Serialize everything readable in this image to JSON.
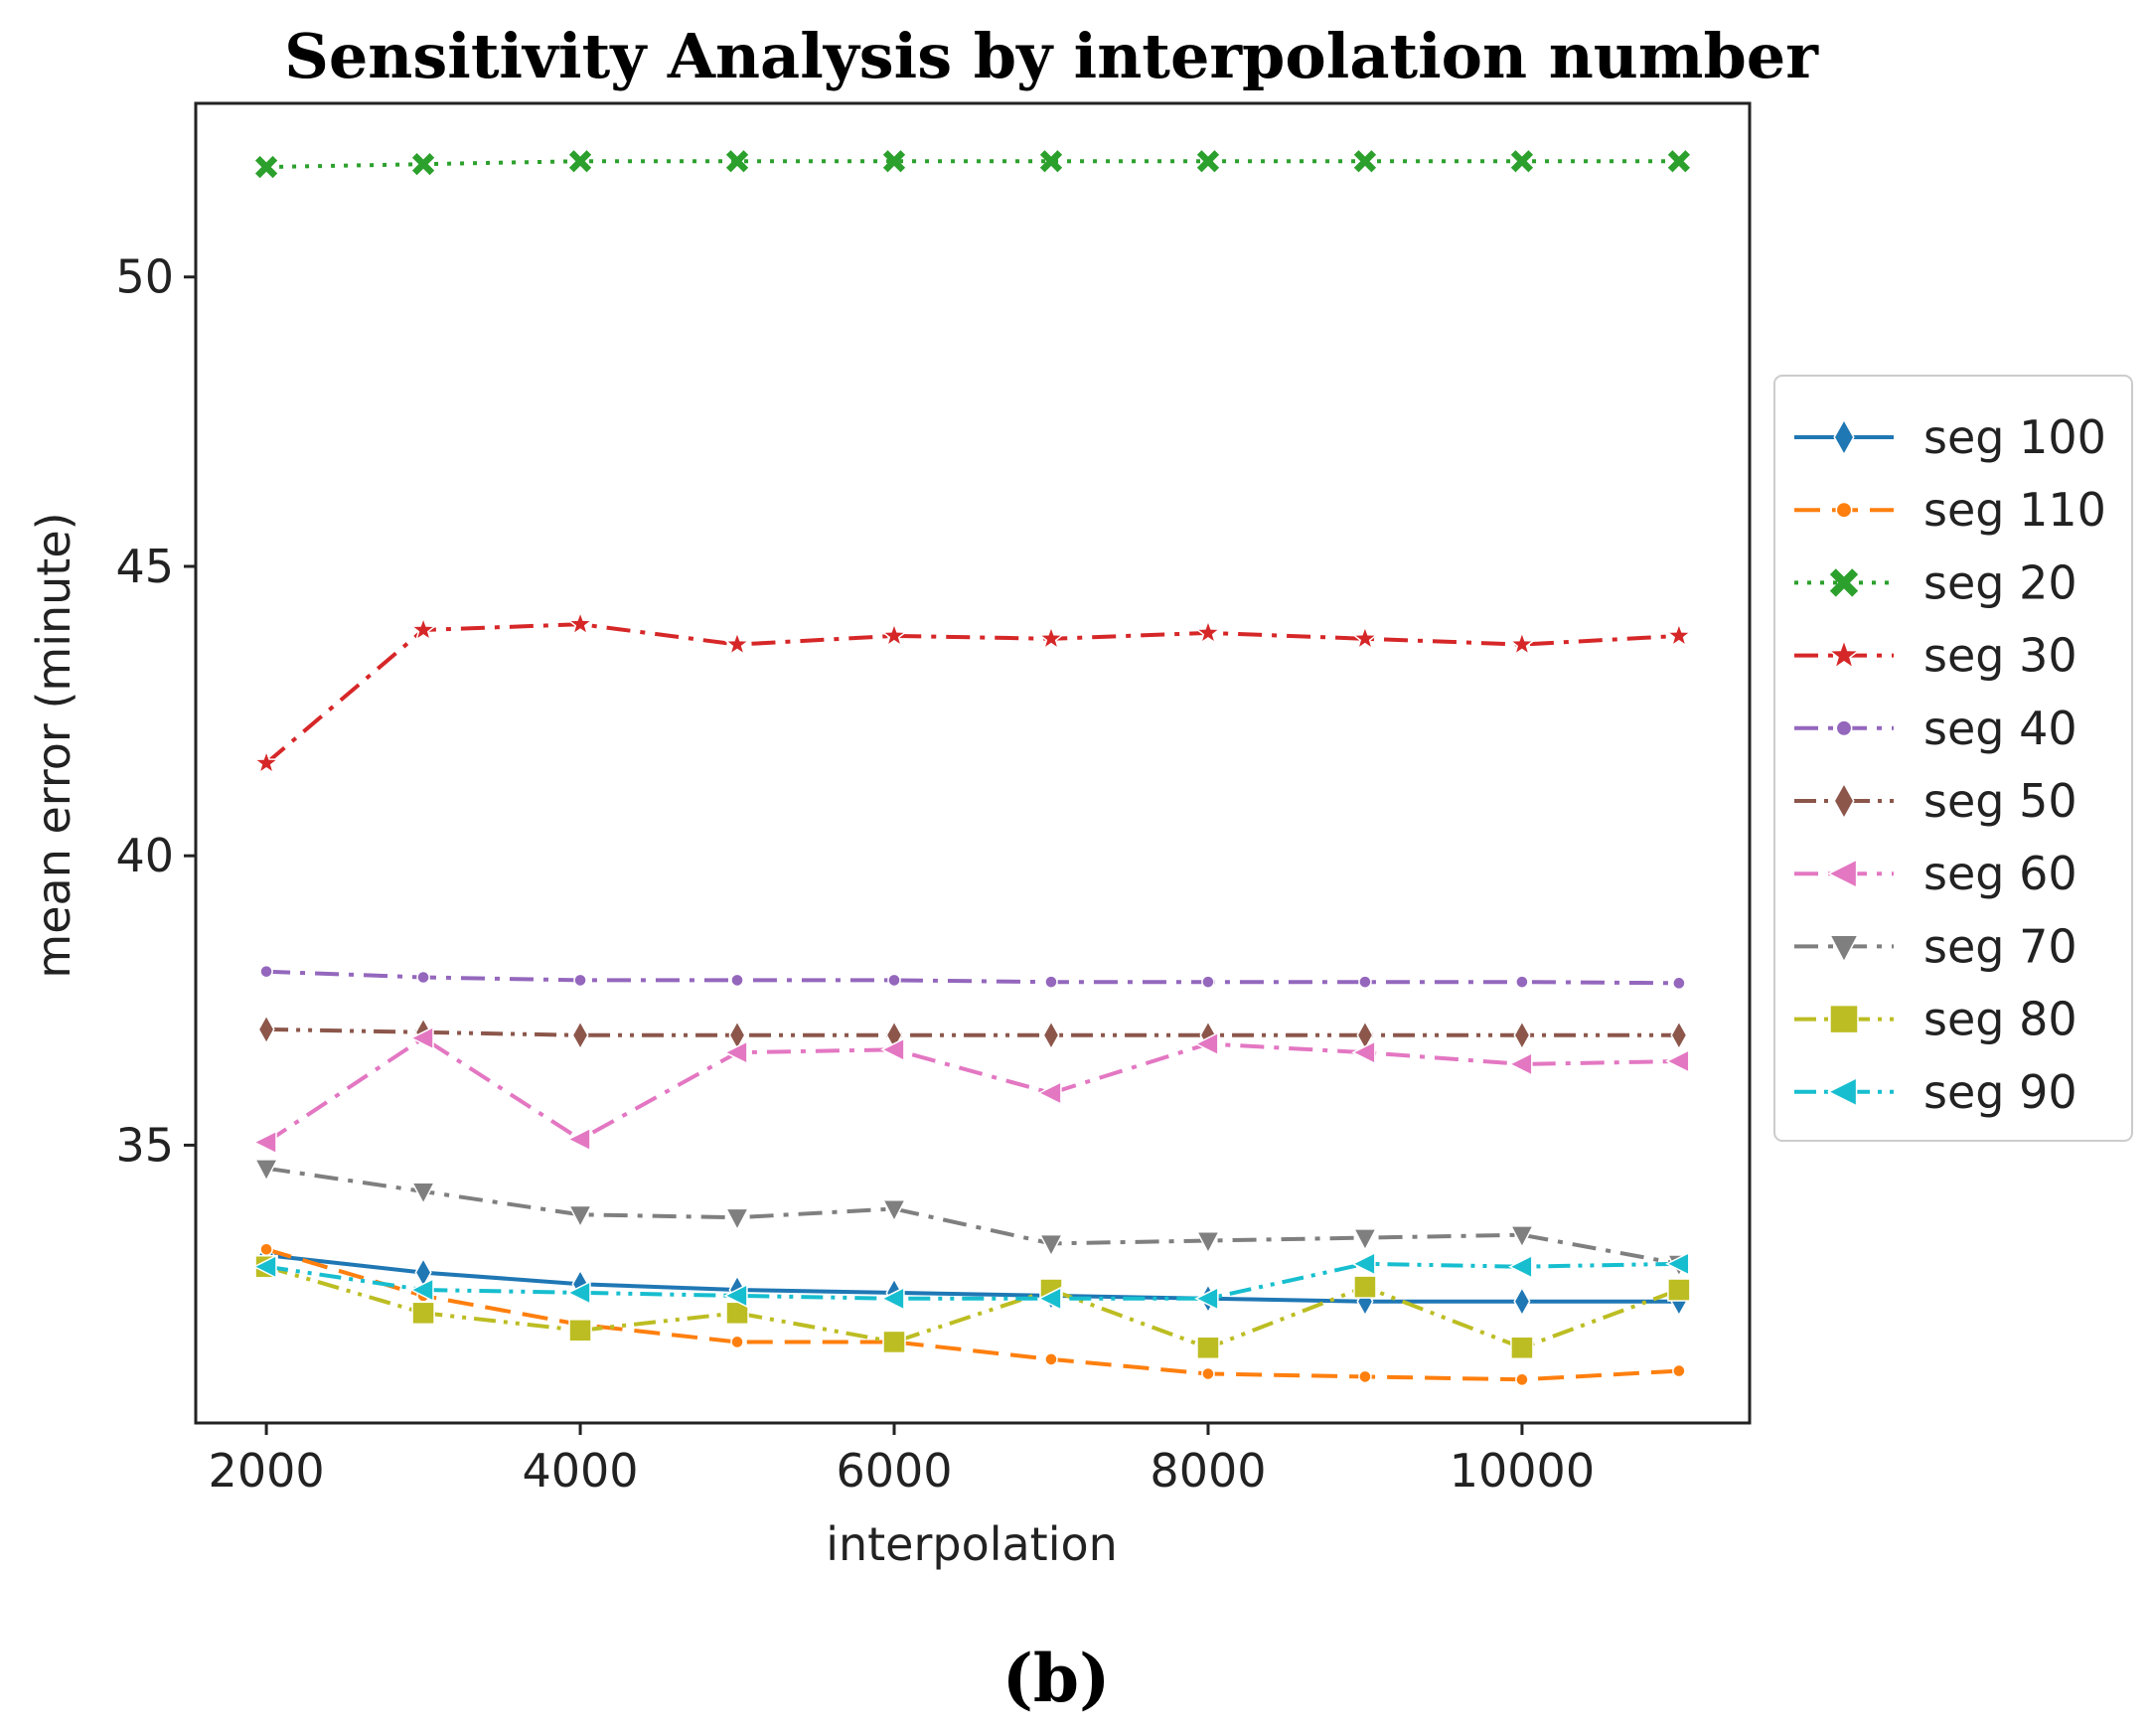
{
  "chart_data": {
    "type": "line",
    "title": "Sensitivity Analysis by interpolation number",
    "caption": "(b)",
    "xlabel": "interpolation",
    "ylabel": "mean error (minute)",
    "x": [
      2000,
      3000,
      4000,
      5000,
      6000,
      7000,
      8000,
      9000,
      10000,
      11000
    ],
    "xticks": [
      2000,
      4000,
      6000,
      8000,
      10000
    ],
    "yticks": [
      35,
      40,
      45,
      50
    ],
    "xlim": [
      1550,
      11450
    ],
    "ylim": [
      30.2,
      53.0
    ],
    "grid": false,
    "legend_position": "right-outside",
    "series": [
      {
        "name": "seg 100",
        "color": "#1f77b4",
        "dash": "solid",
        "marker": "thin-diamond",
        "values": [
          33.1,
          32.8,
          32.6,
          32.5,
          32.45,
          32.4,
          32.35,
          32.3,
          32.3,
          32.3
        ]
      },
      {
        "name": "seg 110",
        "color": "#ff7f0e",
        "dash": "dashed",
        "marker": "point",
        "values": [
          33.2,
          32.4,
          31.9,
          31.6,
          31.6,
          31.3,
          31.05,
          31.0,
          30.95,
          31.1
        ]
      },
      {
        "name": "seg 20",
        "color": "#2ca02c",
        "dash": "dotted",
        "marker": "x",
        "values": [
          51.9,
          51.95,
          52.0,
          52.0,
          52.0,
          52.0,
          52.0,
          52.0,
          52.0,
          52.0
        ]
      },
      {
        "name": "seg 30",
        "color": "#d62728",
        "dash": "dashdot",
        "marker": "star",
        "values": [
          41.6,
          43.9,
          44.0,
          43.65,
          43.8,
          43.75,
          43.85,
          43.75,
          43.65,
          43.8
        ]
      },
      {
        "name": "seg 40",
        "color": "#9467bd",
        "dash": "dashdot",
        "marker": "point",
        "values": [
          38.0,
          37.9,
          37.85,
          37.85,
          37.85,
          37.82,
          37.82,
          37.82,
          37.82,
          37.8
        ]
      },
      {
        "name": "seg 50",
        "color": "#8c564b",
        "dash": "dashdotdot",
        "marker": "thin-diamond",
        "values": [
          37.0,
          36.95,
          36.9,
          36.9,
          36.9,
          36.9,
          36.9,
          36.9,
          36.9,
          36.9
        ]
      },
      {
        "name": "seg 60",
        "color": "#e377c2",
        "dash": "dashdot",
        "marker": "triangle-left",
        "values": [
          35.05,
          36.85,
          35.1,
          36.6,
          36.65,
          35.9,
          36.75,
          36.6,
          36.4,
          36.45
        ]
      },
      {
        "name": "seg 70",
        "color": "#7f7f7f",
        "dash": "dashdot",
        "marker": "triangle-down",
        "values": [
          34.6,
          34.2,
          33.8,
          33.75,
          33.9,
          33.3,
          33.35,
          33.4,
          33.45,
          32.95
        ]
      },
      {
        "name": "seg 80",
        "color": "#bcbd22",
        "dash": "dashdotdot",
        "marker": "square",
        "values": [
          32.9,
          32.1,
          31.8,
          32.1,
          31.6,
          32.5,
          31.5,
          32.55,
          31.5,
          32.5
        ]
      },
      {
        "name": "seg 90",
        "color": "#17becf",
        "dash": "dashdotdot",
        "marker": "triangle-left",
        "values": [
          32.9,
          32.5,
          32.45,
          32.4,
          32.35,
          32.35,
          32.35,
          32.95,
          32.9,
          32.95
        ]
      }
    ]
  }
}
